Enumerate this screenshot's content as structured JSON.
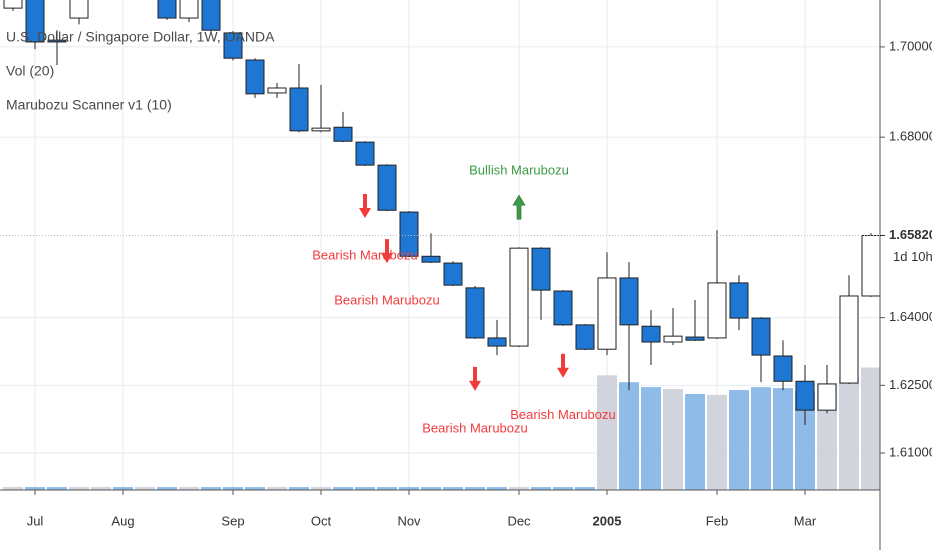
{
  "chart_data": {
    "type": "candlestick",
    "title": "U.S. Dollar / Singapore Dollar, 1W, OANDA",
    "indicators": [
      "Vol (20)",
      "Marubozu Scanner v1 (10)"
    ],
    "categories": [
      null,
      "Jul",
      null,
      null,
      null,
      "Aug",
      null,
      null,
      null,
      null,
      "Sep",
      null,
      null,
      null,
      "Oct",
      null,
      null,
      null,
      "Nov",
      null,
      null,
      null,
      null,
      "Dec",
      null,
      null,
      null,
      "2005",
      null,
      null,
      null,
      null,
      "Feb",
      null,
      null,
      null,
      "Mar",
      null,
      null,
      null
    ],
    "open": [
      1.7086,
      1.713,
      1.7015,
      1.7064,
      1.7115,
      1.715,
      1.7125,
      1.714,
      1.7064,
      1.713,
      1.7031,
      1.6971,
      1.6898,
      1.6909,
      1.6814,
      1.6822,
      1.6789,
      1.6738,
      1.6634,
      1.6536,
      1.6521,
      1.6466,
      1.6355,
      1.6337,
      1.6554,
      1.6459,
      1.6384,
      1.633,
      1.6488,
      1.6381,
      1.6346,
      1.6357,
      1.6355,
      1.6477,
      1.6399,
      1.6315,
      1.6259,
      1.6195,
      1.6255,
      1.6448
    ],
    "high": [
      1.714,
      1.7145,
      1.7037,
      1.7135,
      1.716,
      1.7165,
      1.715,
      1.715,
      1.714,
      1.714,
      1.7035,
      1.6975,
      1.692,
      1.6962,
      1.6916,
      1.6856,
      1.6791,
      1.674,
      1.6636,
      1.6587,
      1.6525,
      1.647,
      1.6395,
      1.6556,
      1.6556,
      1.6461,
      1.6386,
      1.6545,
      1.6523,
      1.6417,
      1.6421,
      1.6439,
      1.6594,
      1.6494,
      1.6401,
      1.635,
      1.6295,
      1.6295,
      1.6494,
      1.6587
    ],
    "low": [
      1.708,
      1.6995,
      1.696,
      1.705,
      1.7108,
      1.711,
      1.7112,
      1.706,
      1.7055,
      1.703,
      1.697,
      1.6887,
      1.6887,
      1.6811,
      1.6811,
      1.6789,
      1.6736,
      1.6636,
      1.6534,
      1.6521,
      1.647,
      1.6353,
      1.6317,
      1.6335,
      1.6395,
      1.6382,
      1.6328,
      1.6317,
      1.6239,
      1.6295,
      1.6339,
      1.6348,
      1.6353,
      1.6372,
      1.6257,
      1.6239,
      1.6162,
      1.6188,
      1.6253,
      1.6446
    ],
    "close": [
      1.7125,
      1.7011,
      1.7011,
      1.712,
      1.715,
      1.7125,
      1.714,
      1.7064,
      1.713,
      1.7037,
      1.6975,
      1.6896,
      1.6909,
      1.6814,
      1.682,
      1.6791,
      1.6738,
      1.6638,
      1.6536,
      1.6523,
      1.6472,
      1.6355,
      1.6337,
      1.6554,
      1.6461,
      1.6384,
      1.633,
      1.6488,
      1.6384,
      1.6346,
      1.6359,
      1.635,
      1.6477,
      1.6399,
      1.6317,
      1.6259,
      1.6195,
      1.6253,
      1.6448,
      1.6582
    ],
    "volume": [
      3,
      3,
      3,
      3,
      3,
      3,
      3,
      3,
      3,
      3,
      3,
      3,
      3,
      3,
      3,
      3,
      3,
      3,
      3,
      3,
      3,
      3,
      3,
      3,
      3,
      3,
      3,
      117,
      110,
      105,
      103,
      98,
      97,
      102,
      105,
      104,
      101,
      109,
      115,
      125
    ],
    "volume_lim": [
      0,
      500
    ],
    "up_color": "#ffffff",
    "down_color": "#1f77d4",
    "volume_up_color": "#d1d4dc",
    "volume_down_color": "#8fbbe9",
    "ylim": [
      1.6018,
      1.7104
    ],
    "yticks": [
      {
        "value": 1.7,
        "label": "1.70000"
      },
      {
        "value": 1.68,
        "label": "1.68000"
      },
      {
        "value": 1.64,
        "label": "1.64000"
      },
      {
        "value": 1.625,
        "label": "1.62500"
      },
      {
        "value": 1.61,
        "label": "1.61000"
      }
    ],
    "last_price": {
      "value": 1.6582,
      "label": "1.65820"
    },
    "countdown": "1d 10h",
    "grid": true,
    "annotations": [
      {
        "index": 16,
        "text": "Bearish Marubozu",
        "kind": "bearish",
        "color": "#f23b3b"
      },
      {
        "index": 17,
        "text": "Bearish Marubozu",
        "kind": "bearish",
        "color": "#f23b3b"
      },
      {
        "index": 21,
        "text": "Bearish Marubozu",
        "kind": "bearish",
        "color": "#f23b3b"
      },
      {
        "index": 23,
        "text": "Bullish Marubozu",
        "kind": "bullish",
        "color": "#3c9a45"
      },
      {
        "index": 25,
        "text": "Bearish Marubozu",
        "kind": "bearish",
        "color": "#f23b3b"
      }
    ]
  }
}
